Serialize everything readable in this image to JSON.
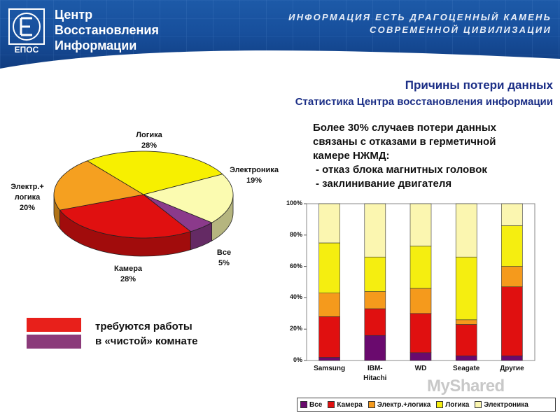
{
  "header": {
    "brand_lines": [
      "Центр",
      "Восстановления",
      "Информации"
    ],
    "logo_text": "ЕПОС",
    "slogan_lines": [
      "ИНФОРМАЦИЯ ЕСТЬ ДРАГОЦЕННЫЙ КАМЕНЬ",
      "СОВРЕМЕННОЙ ЦИВИЛИЗАЦИИ"
    ]
  },
  "title": "Причины потери данных",
  "subtitle": "Статистика Центра восстановления информации",
  "note": {
    "lines": [
      "Более 30% случаев потери данных",
      "связаны с отказами в герметичной",
      "камере НЖМД:"
    ],
    "bullets": [
      "- отказ блока магнитных головок",
      "- заклинивание двигателя"
    ]
  },
  "clean_room_legend": {
    "line1": "требуются работы",
    "line2": "в «чистой» комнате",
    "colors": [
      "#e8201b",
      "#8b3a7a"
    ]
  },
  "watermark": "MyShared",
  "chart_data": [
    {
      "type": "pie",
      "slices": [
        {
          "label": "Логика",
          "value": 28,
          "pct_label": "28%",
          "color": "#f7f000"
        },
        {
          "label": "Электроника",
          "value": 19,
          "pct_label": "19%",
          "color": "#fbfbb0"
        },
        {
          "label": "Все",
          "value": 5,
          "pct_label": "5%",
          "color": "#8b3a8b"
        },
        {
          "label": "Камера",
          "value": 28,
          "pct_label": "28%",
          "color": "#e01010"
        },
        {
          "label": "Электр.+ логика",
          "value": 20,
          "pct_label": "20%",
          "color": "#f5a020"
        }
      ]
    },
    {
      "type": "bar",
      "stacked": "percent",
      "categories": [
        "Samsung",
        "IBM-Hitachi",
        "WD",
        "Seagate",
        "Другие"
      ],
      "category_lines": [
        [
          "Samsung"
        ],
        [
          "IBM-",
          "Hitachi"
        ],
        [
          "WD"
        ],
        [
          "Seagate"
        ],
        [
          "Другие"
        ]
      ],
      "yticks": [
        "0%",
        "20%",
        "40%",
        "60%",
        "80%",
        "100%"
      ],
      "ylim": [
        0,
        100
      ],
      "series": [
        {
          "name": "Все",
          "color": "#6a0a6e",
          "values": [
            2,
            16,
            5,
            3,
            3
          ]
        },
        {
          "name": "Камера",
          "color": "#e01010",
          "values": [
            26,
            17,
            25,
            20,
            44
          ]
        },
        {
          "name": "Электр.+логика",
          "color": "#f59a1c",
          "values": [
            15,
            11,
            16,
            3,
            13
          ]
        },
        {
          "name": "Логика",
          "color": "#f5ee10",
          "values": [
            32,
            22,
            27,
            40,
            26
          ]
        },
        {
          "name": "Электроника",
          "color": "#fbf6b0",
          "values": [
            25,
            34,
            27,
            34,
            14
          ]
        }
      ]
    }
  ]
}
